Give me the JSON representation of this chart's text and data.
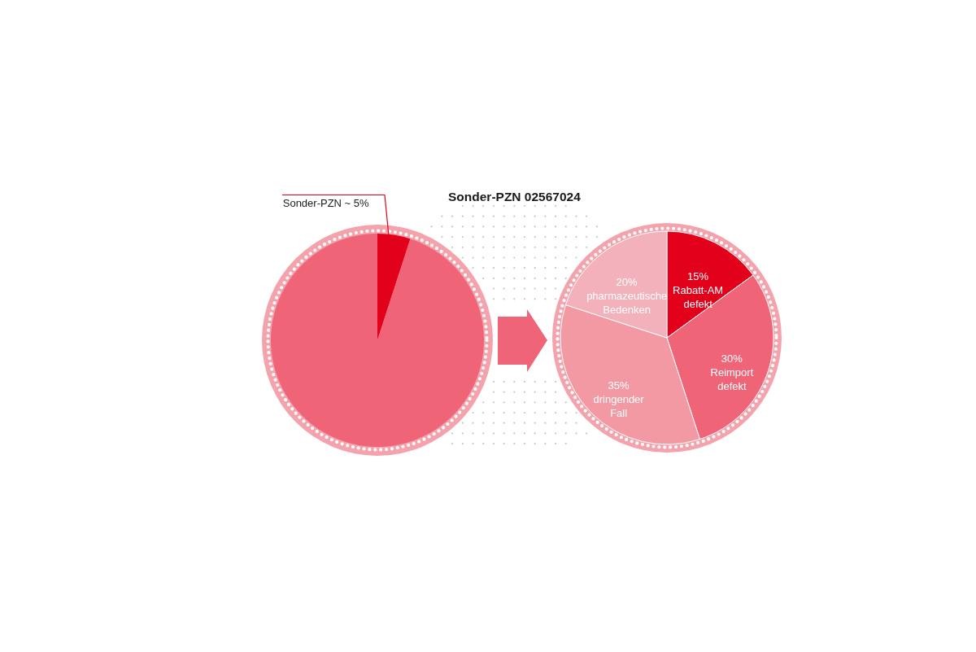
{
  "chart_data": [
    {
      "type": "pie",
      "title": "Sonder-PZN 02567024",
      "categories": [
        "Sonder-PZN",
        null
      ],
      "values": [
        5,
        95
      ],
      "colors": [
        "#e2001a",
        "#ef6577"
      ],
      "value_labels": [
        "~ 5%",
        null
      ]
    },
    {
      "type": "pie",
      "categories": [
        "Rabatt-AM defekt",
        "Reimport defekt",
        "dringender Fall",
        "pharmazeutische Bedenken"
      ],
      "values": [
        15,
        30,
        35,
        20
      ],
      "colors": [
        "#e2001a",
        "#ef6577",
        "#f299a4",
        "#f3b1bb"
      ],
      "value_labels": [
        "15%",
        "30%",
        "35%",
        "20%"
      ]
    }
  ]
}
